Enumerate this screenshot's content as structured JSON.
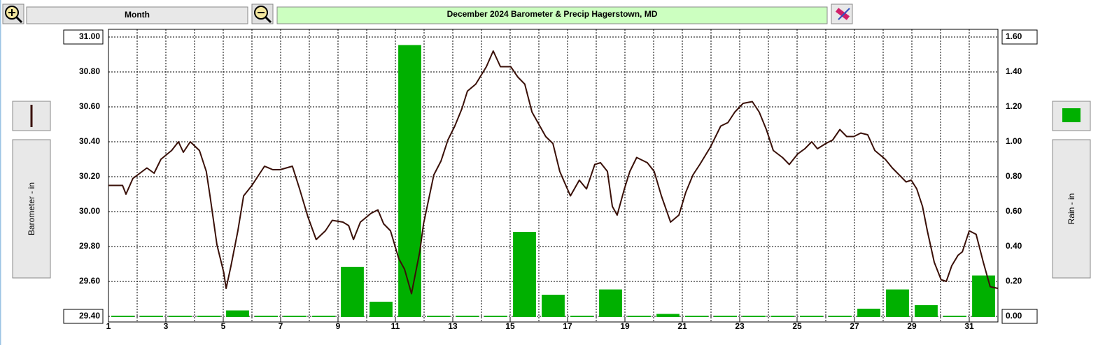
{
  "toolbar": {
    "period": "Month"
  },
  "chart_data": {
    "type": "combo",
    "title": "December  2024  Barometer & Precip    Hagerstown, MD",
    "ylabel": "Barometer - in",
    "y2label": "Rain - in",
    "xlim": [
      1,
      32
    ],
    "xticks": [
      1,
      3,
      5,
      7,
      9,
      11,
      13,
      15,
      17,
      19,
      21,
      23,
      25,
      27,
      29,
      31
    ],
    "ylim": [
      29.4,
      31.0
    ],
    "yticks": [
      {
        "value": 29.4,
        "label": "29.40"
      },
      {
        "value": 29.6,
        "label": "29.60"
      },
      {
        "value": 29.8,
        "label": "29.80"
      },
      {
        "value": 30.0,
        "label": "30.00"
      },
      {
        "value": 30.2,
        "label": "30.20"
      },
      {
        "value": 30.4,
        "label": "30.40"
      },
      {
        "value": 30.6,
        "label": "30.60"
      },
      {
        "value": 30.8,
        "label": "30.80"
      },
      {
        "value": 31.0,
        "label": "31.00"
      }
    ],
    "y2lim": [
      0,
      1.6
    ],
    "y2ticks": [
      {
        "value": 0,
        "label": "0.00"
      },
      {
        "value": 0.2,
        "label": "0.20"
      },
      {
        "value": 0.4,
        "label": "0.40"
      },
      {
        "value": 0.6,
        "label": "0.60"
      },
      {
        "value": 0.8,
        "label": "0.80"
      },
      {
        "value": 1.0,
        "label": "1.00"
      },
      {
        "value": 1.2,
        "label": "1.20"
      },
      {
        "value": 1.4,
        "label": "1.40"
      },
      {
        "value": 1.6,
        "label": "1.60"
      }
    ],
    "grid": true,
    "series": [
      {
        "type": "line",
        "color": "#3a1008",
        "x": [
          1.0,
          1.49,
          1.61,
          1.85,
          2.34,
          2.59,
          2.83,
          3.2,
          3.44,
          3.61,
          3.85,
          4.17,
          4.41,
          4.54,
          4.78,
          5.02,
          5.1,
          5.27,
          5.51,
          5.71,
          6.0,
          6.24,
          6.44,
          6.73,
          6.98,
          7.41,
          7.66,
          7.95,
          8.24,
          8.56,
          8.8,
          9.17,
          9.37,
          9.54,
          9.78,
          10.15,
          10.39,
          10.59,
          10.83,
          11.12,
          11.32,
          11.56,
          11.85,
          11.98,
          12.34,
          12.59,
          12.83,
          13.07,
          13.32,
          13.51,
          13.8,
          14.17,
          14.41,
          14.66,
          15.02,
          15.27,
          15.51,
          15.76,
          16.24,
          16.49,
          16.73,
          17.1,
          17.41,
          17.66,
          17.95,
          18.15,
          18.39,
          18.56,
          18.73,
          18.98,
          19.17,
          19.41,
          19.78,
          20.02,
          20.27,
          20.59,
          20.88,
          21.12,
          21.37,
          21.61,
          21.98,
          22.34,
          22.59,
          22.83,
          23.12,
          23.44,
          23.68,
          23.93,
          24.17,
          24.49,
          24.73,
          25.02,
          25.27,
          25.51,
          25.71,
          26.0,
          26.24,
          26.49,
          26.73,
          26.98,
          27.22,
          27.46,
          27.71,
          28.07,
          28.32,
          28.56,
          28.8,
          28.98,
          29.17,
          29.37,
          29.54,
          29.78,
          30.02,
          30.2,
          30.39,
          30.61,
          30.76,
          31.0,
          31.24,
          31.49,
          31.73,
          32.0
        ],
        "values": [
          30.15,
          30.15,
          30.1,
          30.19,
          30.25,
          30.22,
          30.3,
          30.35,
          30.4,
          30.34,
          30.4,
          30.35,
          30.23,
          30.09,
          29.81,
          29.65,
          29.56,
          29.69,
          29.89,
          30.09,
          30.15,
          30.21,
          30.26,
          30.24,
          30.24,
          30.26,
          30.13,
          29.97,
          29.84,
          29.89,
          29.95,
          29.94,
          29.92,
          29.84,
          29.94,
          29.99,
          30.01,
          29.93,
          29.89,
          29.73,
          29.67,
          29.53,
          29.77,
          29.93,
          30.21,
          30.29,
          30.41,
          30.49,
          30.59,
          30.69,
          30.73,
          30.83,
          30.92,
          30.83,
          30.83,
          30.77,
          30.73,
          30.57,
          30.43,
          30.39,
          30.23,
          30.09,
          30.18,
          30.13,
          30.27,
          30.28,
          30.23,
          30.03,
          29.98,
          30.13,
          30.23,
          30.31,
          30.28,
          30.23,
          30.09,
          29.94,
          29.98,
          30.11,
          30.21,
          30.27,
          30.37,
          30.49,
          30.51,
          30.57,
          30.62,
          30.63,
          30.57,
          30.47,
          30.35,
          30.31,
          30.27,
          30.33,
          30.36,
          30.4,
          30.36,
          30.39,
          30.41,
          30.47,
          30.43,
          30.43,
          30.45,
          30.44,
          30.35,
          30.3,
          30.25,
          30.21,
          30.17,
          30.18,
          30.13,
          30.03,
          29.89,
          29.71,
          29.61,
          29.6,
          29.69,
          29.75,
          29.77,
          29.89,
          29.87,
          29.71,
          29.57,
          29.56
        ]
      },
      {
        "type": "bar",
        "axis": "y2",
        "color": "#00b000",
        "x": [
          1,
          2,
          3,
          4,
          5,
          6,
          7,
          8,
          9,
          10,
          11,
          12,
          13,
          14,
          15,
          16,
          17,
          18,
          19,
          20,
          21,
          22,
          23,
          24,
          25,
          26,
          27,
          28,
          29,
          30,
          31
        ],
        "values": [
          0,
          0,
          0,
          0,
          0.03,
          0,
          0,
          0,
          0.28,
          0.08,
          1.55,
          0,
          0,
          0,
          0.48,
          0.12,
          0,
          0.15,
          0,
          0.01,
          0,
          0,
          0,
          0,
          0,
          0,
          0.04,
          0.15,
          0.06,
          0,
          0.23
        ]
      }
    ]
  }
}
